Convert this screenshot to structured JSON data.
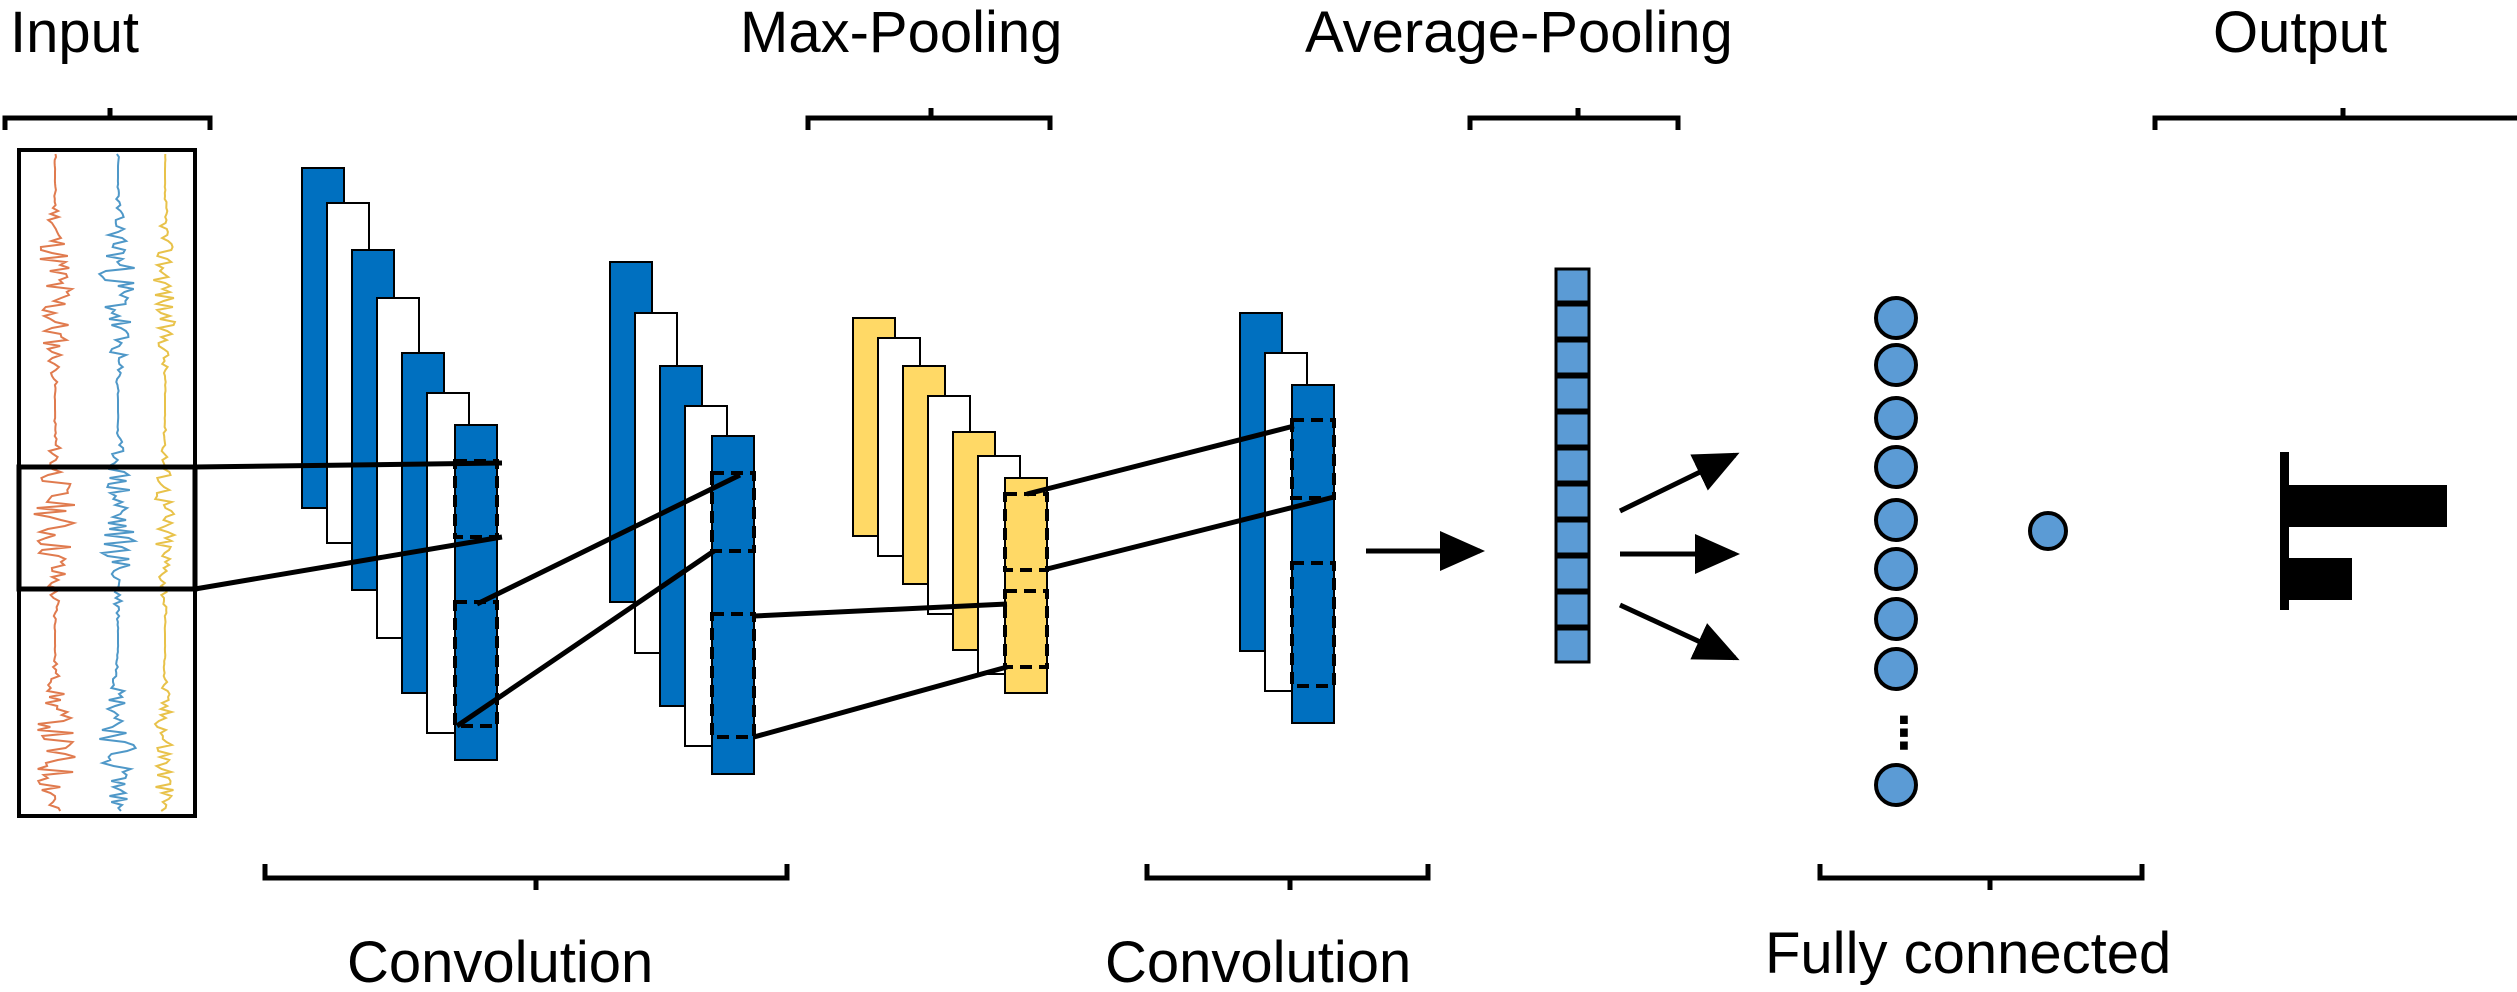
{
  "labels": {
    "input": "Input",
    "max_pooling": "Max-Pooling",
    "average_pooling": "Average-Pooling",
    "output": "Output",
    "convolution_1": "Convolution",
    "convolution_2": "Convolution",
    "fully_connected": "Fully connected",
    "ellipsis": "⋮"
  },
  "colors": {
    "conv_map": "#0070c0",
    "pool_map": "#ffd966",
    "node": "#5b9bd5",
    "signal_1": "#e07b4f",
    "signal_2": "#4f98c8",
    "signal_3": "#e8c24a"
  },
  "output_bars": [
    1.0,
    0.4
  ]
}
